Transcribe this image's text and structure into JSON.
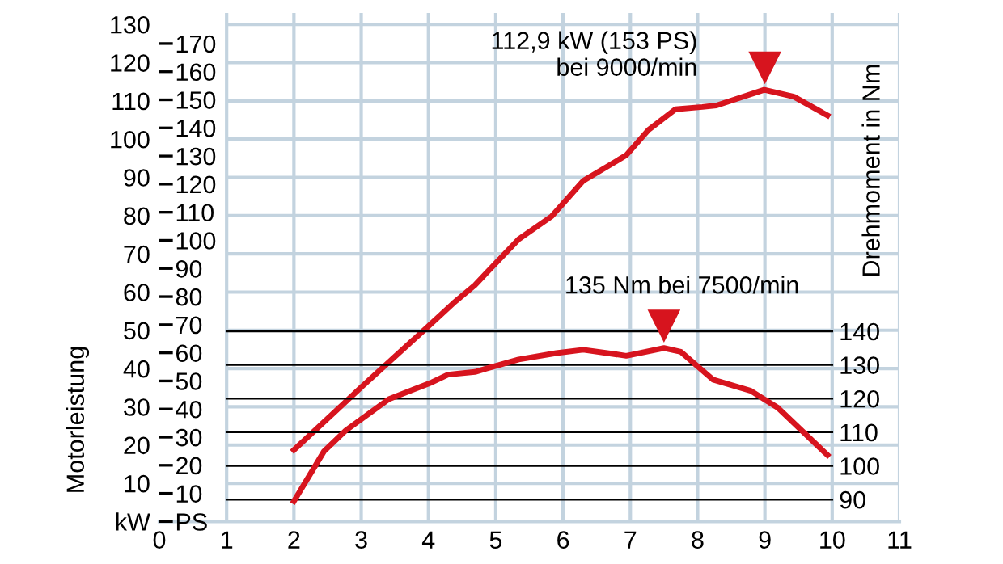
{
  "chart_data": {
    "type": "line",
    "ylabel": "Motorleistung",
    "y3label": "Drehmoment in Nm",
    "series": [
      {
        "color": "#d7141e",
        "axis": "y",
        "x": [
          2,
          3.0,
          4.0,
          4.37,
          4.69,
          4.86,
          5.34,
          5.83,
          6.3,
          6.94,
          7.27,
          7.67,
          8.07,
          8.28,
          8.99,
          9.43,
          9.93
        ],
        "values": [
          18.7,
          35.1,
          51.1,
          57.1,
          61.8,
          65,
          73.8,
          79.8,
          89.1,
          95.8,
          102.4,
          107.8,
          108.4,
          108.8,
          112.9,
          111.1,
          106.2
        ]
      },
      {
        "color": "#d7141e",
        "axis": "y3",
        "x": [
          2,
          2.45,
          2.77,
          3.41,
          4.05,
          4.29,
          4.69,
          4.86,
          5.34,
          5.9,
          6.3,
          6.94,
          7.5,
          7.75,
          8.23,
          8.79,
          9.19,
          9.93
        ],
        "values": [
          89.5,
          104.4,
          110.5,
          119.8,
          124.8,
          127.1,
          127.9,
          128.9,
          131.6,
          133.5,
          134.5,
          132.7,
          135,
          133.9,
          125.6,
          122.3,
          117.3,
          103.2
        ]
      }
    ],
    "xlim": [
      0,
      11
    ],
    "xticks": [
      0,
      1,
      2,
      3,
      4,
      5,
      6,
      7,
      8,
      9,
      10,
      11
    ],
    "ylim": [
      0,
      133
    ],
    "yticks": [
      {
        "value": 0,
        "label": "kW"
      },
      10,
      20,
      30,
      40,
      50,
      60,
      70,
      80,
      90,
      100,
      110,
      120,
      130
    ],
    "y2lim": [
      0,
      180.9
    ],
    "y2ticks": [
      {
        "value": 0,
        "label": "PS"
      },
      10,
      20,
      30,
      40,
      50,
      60,
      70,
      80,
      90,
      100,
      110,
      120,
      130,
      140,
      150,
      160,
      170
    ],
    "y3lim": [
      83.45,
      234.6
    ],
    "y3ticks": [
      90,
      100,
      110,
      120,
      130,
      140
    ],
    "annotations": [
      {
        "text": "112,9 kW (153 PS)\nbei 9000/min",
        "x": 9,
        "y": 112.9
      },
      "135 Nm bei 7500/min"
    ],
    "grid": true,
    "marker": "none",
    "line_style": "solid",
    "legend": false
  }
}
